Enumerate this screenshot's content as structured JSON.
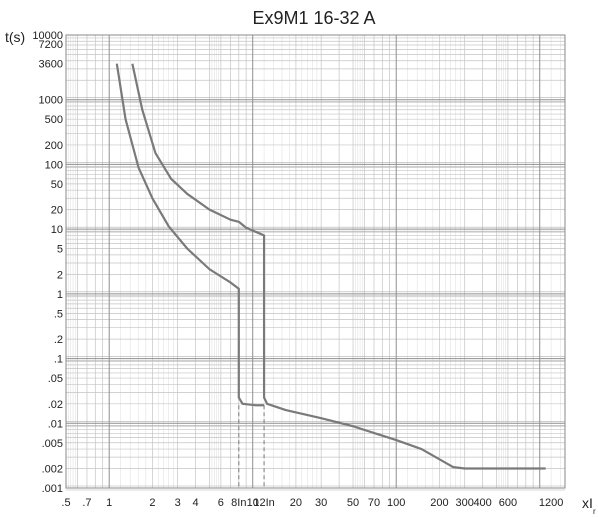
{
  "chart_data": {
    "type": "line",
    "title": "Ex9M1 16-32 A",
    "ylabel": "t(s)",
    "xlabel": "xI",
    "xlabel_sub": "r",
    "x_scale": "log",
    "y_scale": "log",
    "xlim": [
      0.5,
      1500
    ],
    "ylim": [
      0.001,
      10000
    ],
    "grid": true,
    "x_ticks": [
      {
        "value": 0.5,
        "label": ".5"
      },
      {
        "value": 0.7,
        "label": ".7"
      },
      {
        "value": 1,
        "label": "1"
      },
      {
        "value": 2,
        "label": "2"
      },
      {
        "value": 3,
        "label": "3"
      },
      {
        "value": 4,
        "label": "4"
      },
      {
        "value": 6,
        "label": "6"
      },
      {
        "value": 8,
        "label": "8In"
      },
      {
        "value": 10,
        "label": "10"
      },
      {
        "value": 12,
        "label": "12In"
      },
      {
        "value": 20,
        "label": "20"
      },
      {
        "value": 30,
        "label": "30"
      },
      {
        "value": 50,
        "label": "50"
      },
      {
        "value": 70,
        "label": "70"
      },
      {
        "value": 100,
        "label": "100"
      },
      {
        "value": 200,
        "label": "200"
      },
      {
        "value": 300,
        "label": "300"
      },
      {
        "value": 400,
        "label": "400"
      },
      {
        "value": 600,
        "label": "600"
      },
      {
        "value": 1200,
        "label": "1200"
      }
    ],
    "y_ticks": [
      {
        "value": 10000,
        "label": "10000"
      },
      {
        "value": 7200,
        "label": "7200"
      },
      {
        "value": 3600,
        "label": "3600"
      },
      {
        "value": 1000,
        "label": "1000"
      },
      {
        "value": 500,
        "label": "500"
      },
      {
        "value": 200,
        "label": "200"
      },
      {
        "value": 100,
        "label": "100"
      },
      {
        "value": 50,
        "label": "50"
      },
      {
        "value": 20,
        "label": "20"
      },
      {
        "value": 10,
        "label": "10"
      },
      {
        "value": 5,
        "label": "5"
      },
      {
        "value": 2,
        "label": "2"
      },
      {
        "value": 1,
        "label": "1"
      },
      {
        "value": 0.5,
        "label": ".5"
      },
      {
        "value": 0.2,
        "label": ".2"
      },
      {
        "value": 0.1,
        "label": ".1"
      },
      {
        "value": 0.05,
        "label": ".05"
      },
      {
        "value": 0.02,
        "label": ".02"
      },
      {
        "value": 0.01,
        "label": ".01"
      },
      {
        "value": 0.005,
        "label": ".005"
      },
      {
        "value": 0.002,
        "label": ".002"
      },
      {
        "value": 0.001,
        "label": ".001"
      }
    ],
    "series": [
      {
        "color": "#7a7a7a",
        "points": [
          [
            1.13,
            3600
          ],
          [
            1.3,
            500
          ],
          [
            1.6,
            90
          ],
          [
            2.0,
            30
          ],
          [
            2.6,
            11
          ],
          [
            3.5,
            5
          ],
          [
            5.0,
            2.4
          ],
          [
            7.0,
            1.5
          ],
          [
            8.0,
            1.2
          ],
          [
            8.0,
            0.025
          ],
          [
            8.5,
            0.02
          ],
          [
            10.5,
            0.019
          ],
          [
            12.0,
            0.019
          ]
        ]
      },
      {
        "color": "#7a7a7a",
        "points": [
          [
            1.45,
            3600
          ],
          [
            1.7,
            700
          ],
          [
            2.1,
            150
          ],
          [
            2.7,
            60
          ],
          [
            3.5,
            35
          ],
          [
            5.0,
            20
          ],
          [
            7.0,
            14
          ],
          [
            8.0,
            13
          ],
          [
            9.0,
            10.5
          ],
          [
            12.0,
            8
          ],
          [
            12.0,
            0.025
          ],
          [
            12.6,
            0.02
          ],
          [
            17,
            0.016
          ],
          [
            30,
            0.012
          ],
          [
            50,
            0.009
          ],
          [
            100,
            0.0055
          ],
          [
            150,
            0.004
          ],
          [
            250,
            0.0021
          ],
          [
            300,
            0.002
          ],
          [
            1100,
            0.002
          ]
        ]
      }
    ],
    "reference_lines_x": [
      8,
      12
    ]
  }
}
